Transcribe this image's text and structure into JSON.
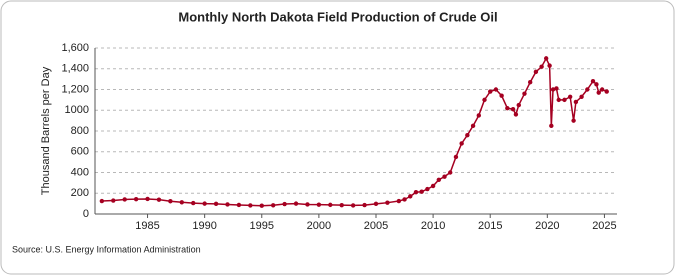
{
  "chart_data": {
    "type": "line",
    "title": "Monthly North Dakota Field Production of Crude Oil",
    "y_label": "Thousand Barrels per Day",
    "source": "Source: U.S. Energy Information Administration",
    "xlim": [
      1980.4,
      2026.1
    ],
    "xticks": [
      1985,
      1990,
      1995,
      2000,
      2005,
      2010,
      2015,
      2020,
      2025
    ],
    "ylim": [
      0,
      1600
    ],
    "yticks": [
      0,
      200,
      400,
      600,
      800,
      1000,
      {
        "value": 1200,
        "label": "1,200"
      },
      {
        "value": 1400,
        "label": "1,400"
      },
      {
        "value": 1600,
        "label": "1,600"
      }
    ],
    "grid": true,
    "x": [
      1981,
      1982,
      1983,
      1984,
      1985,
      1986,
      1987,
      1988,
      1989,
      1990,
      1991,
      1992,
      1993,
      1994,
      1995,
      1996,
      1997,
      1998,
      1999,
      2000,
      2001,
      2002,
      2003,
      2004,
      2005,
      2006,
      2007,
      2007.5,
      2008,
      2008.5,
      2009,
      2009.5,
      2010,
      2010.5,
      2011,
      2011.5,
      2012,
      2012.5,
      2013,
      2013.5,
      2014,
      2014.5,
      2015,
      2015.5,
      2016,
      2016.5,
      2017,
      2017.25,
      2017.5,
      2018,
      2018.5,
      2019,
      2019.5,
      2019.9,
      2020.2,
      2020.35,
      2020.5,
      2020.8,
      2021,
      2021.5,
      2022,
      2022.3,
      2022.5,
      2023,
      2023.5,
      2024,
      2024.3,
      2024.5,
      2024.8,
      2025.2
    ],
    "series": [
      {
        "name": "North Dakota",
        "color": "#a50021",
        "values": [
          125,
          130,
          140,
          143,
          145,
          138,
          123,
          113,
          105,
          100,
          98,
          92,
          87,
          83,
          80,
          84,
          96,
          100,
          92,
          90,
          88,
          85,
          83,
          86,
          98,
          109,
          125,
          140,
          170,
          210,
          215,
          240,
          270,
          330,
          360,
          400,
          550,
          680,
          760,
          850,
          950,
          1100,
          1180,
          1200,
          1140,
          1020,
          1010,
          960,
          1050,
          1160,
          1270,
          1370,
          1420,
          1500,
          1430,
          850,
          1200,
          1210,
          1100,
          1100,
          1130,
          900,
          1080,
          1130,
          1200,
          1280,
          1250,
          1170,
          1200,
          1180
        ]
      }
    ]
  }
}
